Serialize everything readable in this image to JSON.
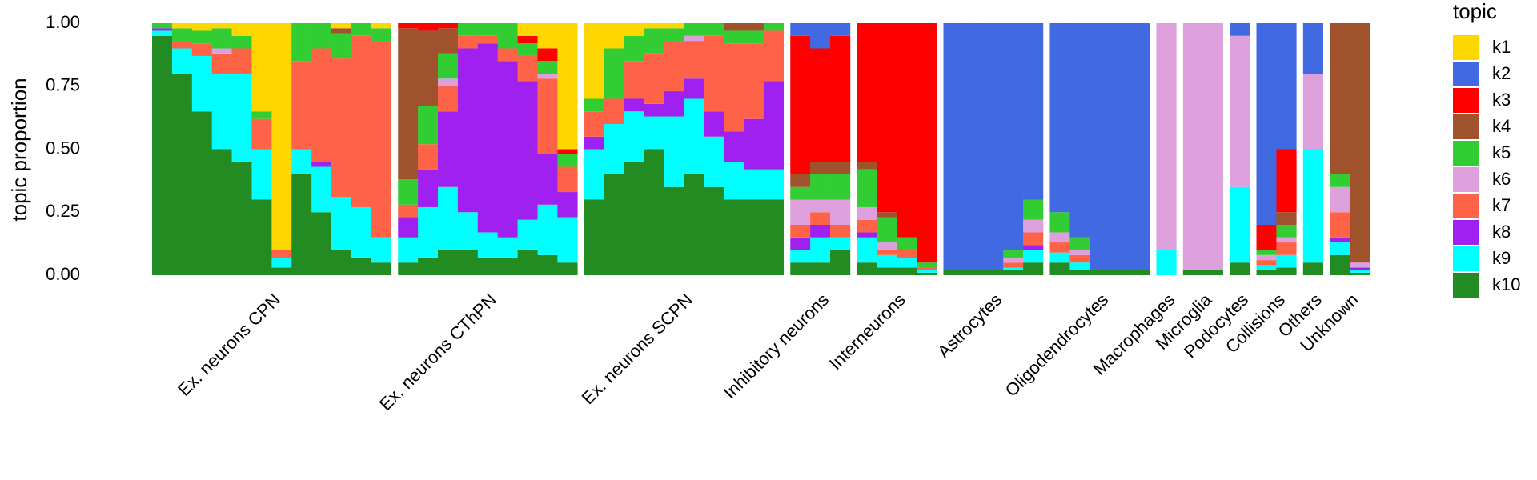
{
  "chart_data": {
    "type": "structure",
    "ylabel": "topic proportion",
    "ylim": [
      0,
      1
    ],
    "yticks": [
      {
        "value": 0,
        "label": "0.00"
      },
      {
        "value": 0.25,
        "label": "0.25"
      },
      {
        "value": 0.5,
        "label": "0.50"
      },
      {
        "value": 0.75,
        "label": "0.75"
      },
      {
        "value": 1,
        "label": "1.00"
      }
    ],
    "grid": false,
    "legend_title": "topic",
    "legend_position": "right",
    "topics": [
      {
        "name": "k1",
        "color": "#FFD700"
      },
      {
        "name": "k2",
        "color": "#4169E1"
      },
      {
        "name": "k3",
        "color": "#FF0000"
      },
      {
        "name": "k4",
        "color": "#A0522D"
      },
      {
        "name": "k5",
        "color": "#32CD32"
      },
      {
        "name": "k6",
        "color": "#DDA0DD"
      },
      {
        "name": "k7",
        "color": "#FF6347"
      },
      {
        "name": "k8",
        "color": "#A020F0"
      },
      {
        "name": "k9",
        "color": "#00FFFF"
      },
      {
        "name": "k10",
        "color": "#228B22"
      }
    ],
    "groups": [
      {
        "name": "Ex. neurons CPN",
        "values": [
          [
            0,
            0,
            0,
            0,
            0.02,
            0,
            0,
            0.01,
            0.02,
            0.95
          ],
          [
            0.02,
            0,
            0,
            0,
            0.05,
            0,
            0.03,
            0,
            0.1,
            0.8
          ],
          [
            0.03,
            0,
            0,
            0,
            0.05,
            0,
            0.05,
            0,
            0.22,
            0.65
          ],
          [
            0.02,
            0,
            0,
            0,
            0.08,
            0.02,
            0.08,
            0,
            0.3,
            0.5
          ],
          [
            0.05,
            0,
            0,
            0,
            0.05,
            0,
            0.1,
            0,
            0.35,
            0.45
          ],
          [
            0.35,
            0,
            0,
            0,
            0.03,
            0,
            0.12,
            0,
            0.2,
            0.3
          ],
          [
            0.9,
            0,
            0,
            0,
            0,
            0,
            0.03,
            0,
            0.04,
            0.03
          ],
          [
            0,
            0,
            0,
            0,
            0.15,
            0,
            0.35,
            0,
            0.1,
            0.4
          ],
          [
            0,
            0,
            0,
            0,
            0.1,
            0,
            0.45,
            0.02,
            0.18,
            0.25
          ],
          [
            0.02,
            0,
            0,
            0.02,
            0.1,
            0,
            0.55,
            0,
            0.21,
            0.1
          ],
          [
            0,
            0,
            0,
            0,
            0.05,
            0,
            0.68,
            0,
            0.2,
            0.07
          ],
          [
            0.02,
            0,
            0,
            0,
            0.05,
            0,
            0.78,
            0,
            0.1,
            0.05
          ]
        ]
      },
      {
        "name": "Ex. neurons CThPN",
        "values": [
          [
            0,
            0,
            0.02,
            0.6,
            0.1,
            0,
            0.05,
            0.08,
            0.1,
            0.05
          ],
          [
            0,
            0,
            0.03,
            0.3,
            0.15,
            0,
            0.1,
            0.15,
            0.2,
            0.07
          ],
          [
            0,
            0,
            0.02,
            0.1,
            0.1,
            0.03,
            0.1,
            0.3,
            0.25,
            0.1
          ],
          [
            0,
            0,
            0,
            0,
            0.05,
            0,
            0.05,
            0.65,
            0.15,
            0.1
          ],
          [
            0,
            0,
            0,
            0,
            0.05,
            0,
            0.03,
            0.75,
            0.1,
            0.07
          ],
          [
            0,
            0,
            0,
            0,
            0.1,
            0,
            0.05,
            0.7,
            0.08,
            0.07
          ],
          [
            0.05,
            0,
            0.03,
            0,
            0.05,
            0,
            0.1,
            0.55,
            0.12,
            0.1
          ],
          [
            0.1,
            0,
            0.05,
            0,
            0.05,
            0.02,
            0.3,
            0.2,
            0.2,
            0.08
          ],
          [
            0.5,
            0,
            0.02,
            0,
            0.05,
            0,
            0.1,
            0.1,
            0.18,
            0.05
          ]
        ]
      },
      {
        "name": "Ex. neurons SCPN",
        "values": [
          [
            0.3,
            0,
            0,
            0,
            0.05,
            0,
            0.1,
            0.05,
            0.2,
            0.3
          ],
          [
            0.1,
            0,
            0,
            0,
            0.2,
            0,
            0.1,
            0,
            0.2,
            0.4
          ],
          [
            0.05,
            0,
            0,
            0,
            0.1,
            0,
            0.15,
            0.05,
            0.2,
            0.45
          ],
          [
            0.02,
            0,
            0,
            0,
            0.1,
            0,
            0.2,
            0.05,
            0.13,
            0.5
          ],
          [
            0.02,
            0,
            0,
            0,
            0.05,
            0,
            0.2,
            0.1,
            0.28,
            0.35
          ],
          [
            0,
            0,
            0,
            0,
            0.05,
            0.02,
            0.15,
            0.08,
            0.3,
            0.4
          ],
          [
            0,
            0,
            0,
            0,
            0.05,
            0,
            0.3,
            0.1,
            0.2,
            0.35
          ],
          [
            0,
            0,
            0,
            0.03,
            0.05,
            0,
            0.35,
            0.12,
            0.15,
            0.3
          ],
          [
            0,
            0,
            0,
            0.03,
            0.05,
            0,
            0.3,
            0.2,
            0.12,
            0.3
          ],
          [
            0,
            0,
            0,
            0,
            0.03,
            0,
            0.2,
            0.35,
            0.12,
            0.3
          ]
        ]
      },
      {
        "name": "Inhibitory neurons",
        "values": [
          [
            0,
            0.05,
            0.55,
            0.05,
            0.05,
            0.1,
            0.05,
            0.05,
            0.05,
            0.05
          ],
          [
            0,
            0.1,
            0.45,
            0.05,
            0.1,
            0.05,
            0.05,
            0.05,
            0.1,
            0.05
          ],
          [
            0,
            0.05,
            0.5,
            0.05,
            0.1,
            0.1,
            0.05,
            0,
            0.05,
            0.1
          ]
        ]
      },
      {
        "name": "Interneurons",
        "values": [
          [
            0,
            0,
            0.55,
            0.03,
            0.15,
            0.05,
            0.05,
            0.02,
            0.1,
            0.05
          ],
          [
            0,
            0,
            0.75,
            0.02,
            0.1,
            0.03,
            0.02,
            0,
            0.05,
            0.03
          ],
          [
            0,
            0,
            0.85,
            0,
            0.05,
            0,
            0.03,
            0,
            0.04,
            0.03
          ],
          [
            0,
            0,
            0.95,
            0,
            0.02,
            0,
            0.01,
            0,
            0.01,
            0.01
          ]
        ]
      },
      {
        "name": "Astrocytes",
        "values": [
          [
            0,
            0.98,
            0,
            0,
            0,
            0,
            0,
            0,
            0,
            0.02
          ],
          [
            0,
            0.98,
            0,
            0,
            0,
            0,
            0,
            0,
            0,
            0.02
          ],
          [
            0,
            0.98,
            0,
            0,
            0,
            0,
            0,
            0,
            0,
            0.02
          ],
          [
            0,
            0.9,
            0,
            0,
            0.03,
            0.02,
            0.02,
            0,
            0.01,
            0.02
          ],
          [
            0,
            0.7,
            0,
            0,
            0.08,
            0.05,
            0.05,
            0.02,
            0.05,
            0.05
          ]
        ]
      },
      {
        "name": "Oligodendrocytes",
        "values": [
          [
            0,
            0.75,
            0,
            0,
            0.08,
            0.04,
            0.04,
            0,
            0.04,
            0.05
          ],
          [
            0,
            0.85,
            0,
            0,
            0.05,
            0.02,
            0.03,
            0,
            0.03,
            0.02
          ],
          [
            0,
            0.98,
            0,
            0,
            0,
            0,
            0,
            0,
            0,
            0.02
          ],
          [
            0,
            0.98,
            0,
            0,
            0,
            0,
            0,
            0,
            0,
            0.02
          ],
          [
            0,
            0.98,
            0,
            0,
            0,
            0,
            0,
            0,
            0,
            0.02
          ]
        ]
      },
      {
        "name": "Macrophages",
        "values": [
          [
            0,
            0,
            0,
            0,
            0,
            0.9,
            0,
            0,
            0.1,
            0
          ]
        ]
      },
      {
        "name": "Microglia",
        "values": [
          [
            0,
            0,
            0,
            0,
            0,
            0.98,
            0,
            0,
            0,
            0.02
          ],
          [
            0,
            0,
            0,
            0,
            0,
            0.98,
            0,
            0,
            0,
            0.02
          ]
        ]
      },
      {
        "name": "Podocytes",
        "values": [
          [
            0,
            0.05,
            0,
            0,
            0,
            0.6,
            0,
            0,
            0.3,
            0.05
          ]
        ]
      },
      {
        "name": "Collisions",
        "values": [
          [
            0,
            0.8,
            0.1,
            0,
            0.02,
            0.02,
            0.02,
            0,
            0.02,
            0.02
          ],
          [
            0,
            0.5,
            0.25,
            0.05,
            0.05,
            0.02,
            0.05,
            0,
            0.05,
            0.03
          ]
        ]
      },
      {
        "name": "Others",
        "values": [
          [
            0,
            0.2,
            0,
            0,
            0,
            0.3,
            0,
            0,
            0.45,
            0.05
          ]
        ]
      },
      {
        "name": "Unknown",
        "values": [
          [
            0,
            0,
            0,
            0.6,
            0.05,
            0.1,
            0.1,
            0.02,
            0.05,
            0.08
          ],
          [
            0,
            0,
            0,
            0.95,
            0,
            0.02,
            0,
            0.01,
            0.01,
            0.01
          ]
        ]
      }
    ]
  }
}
